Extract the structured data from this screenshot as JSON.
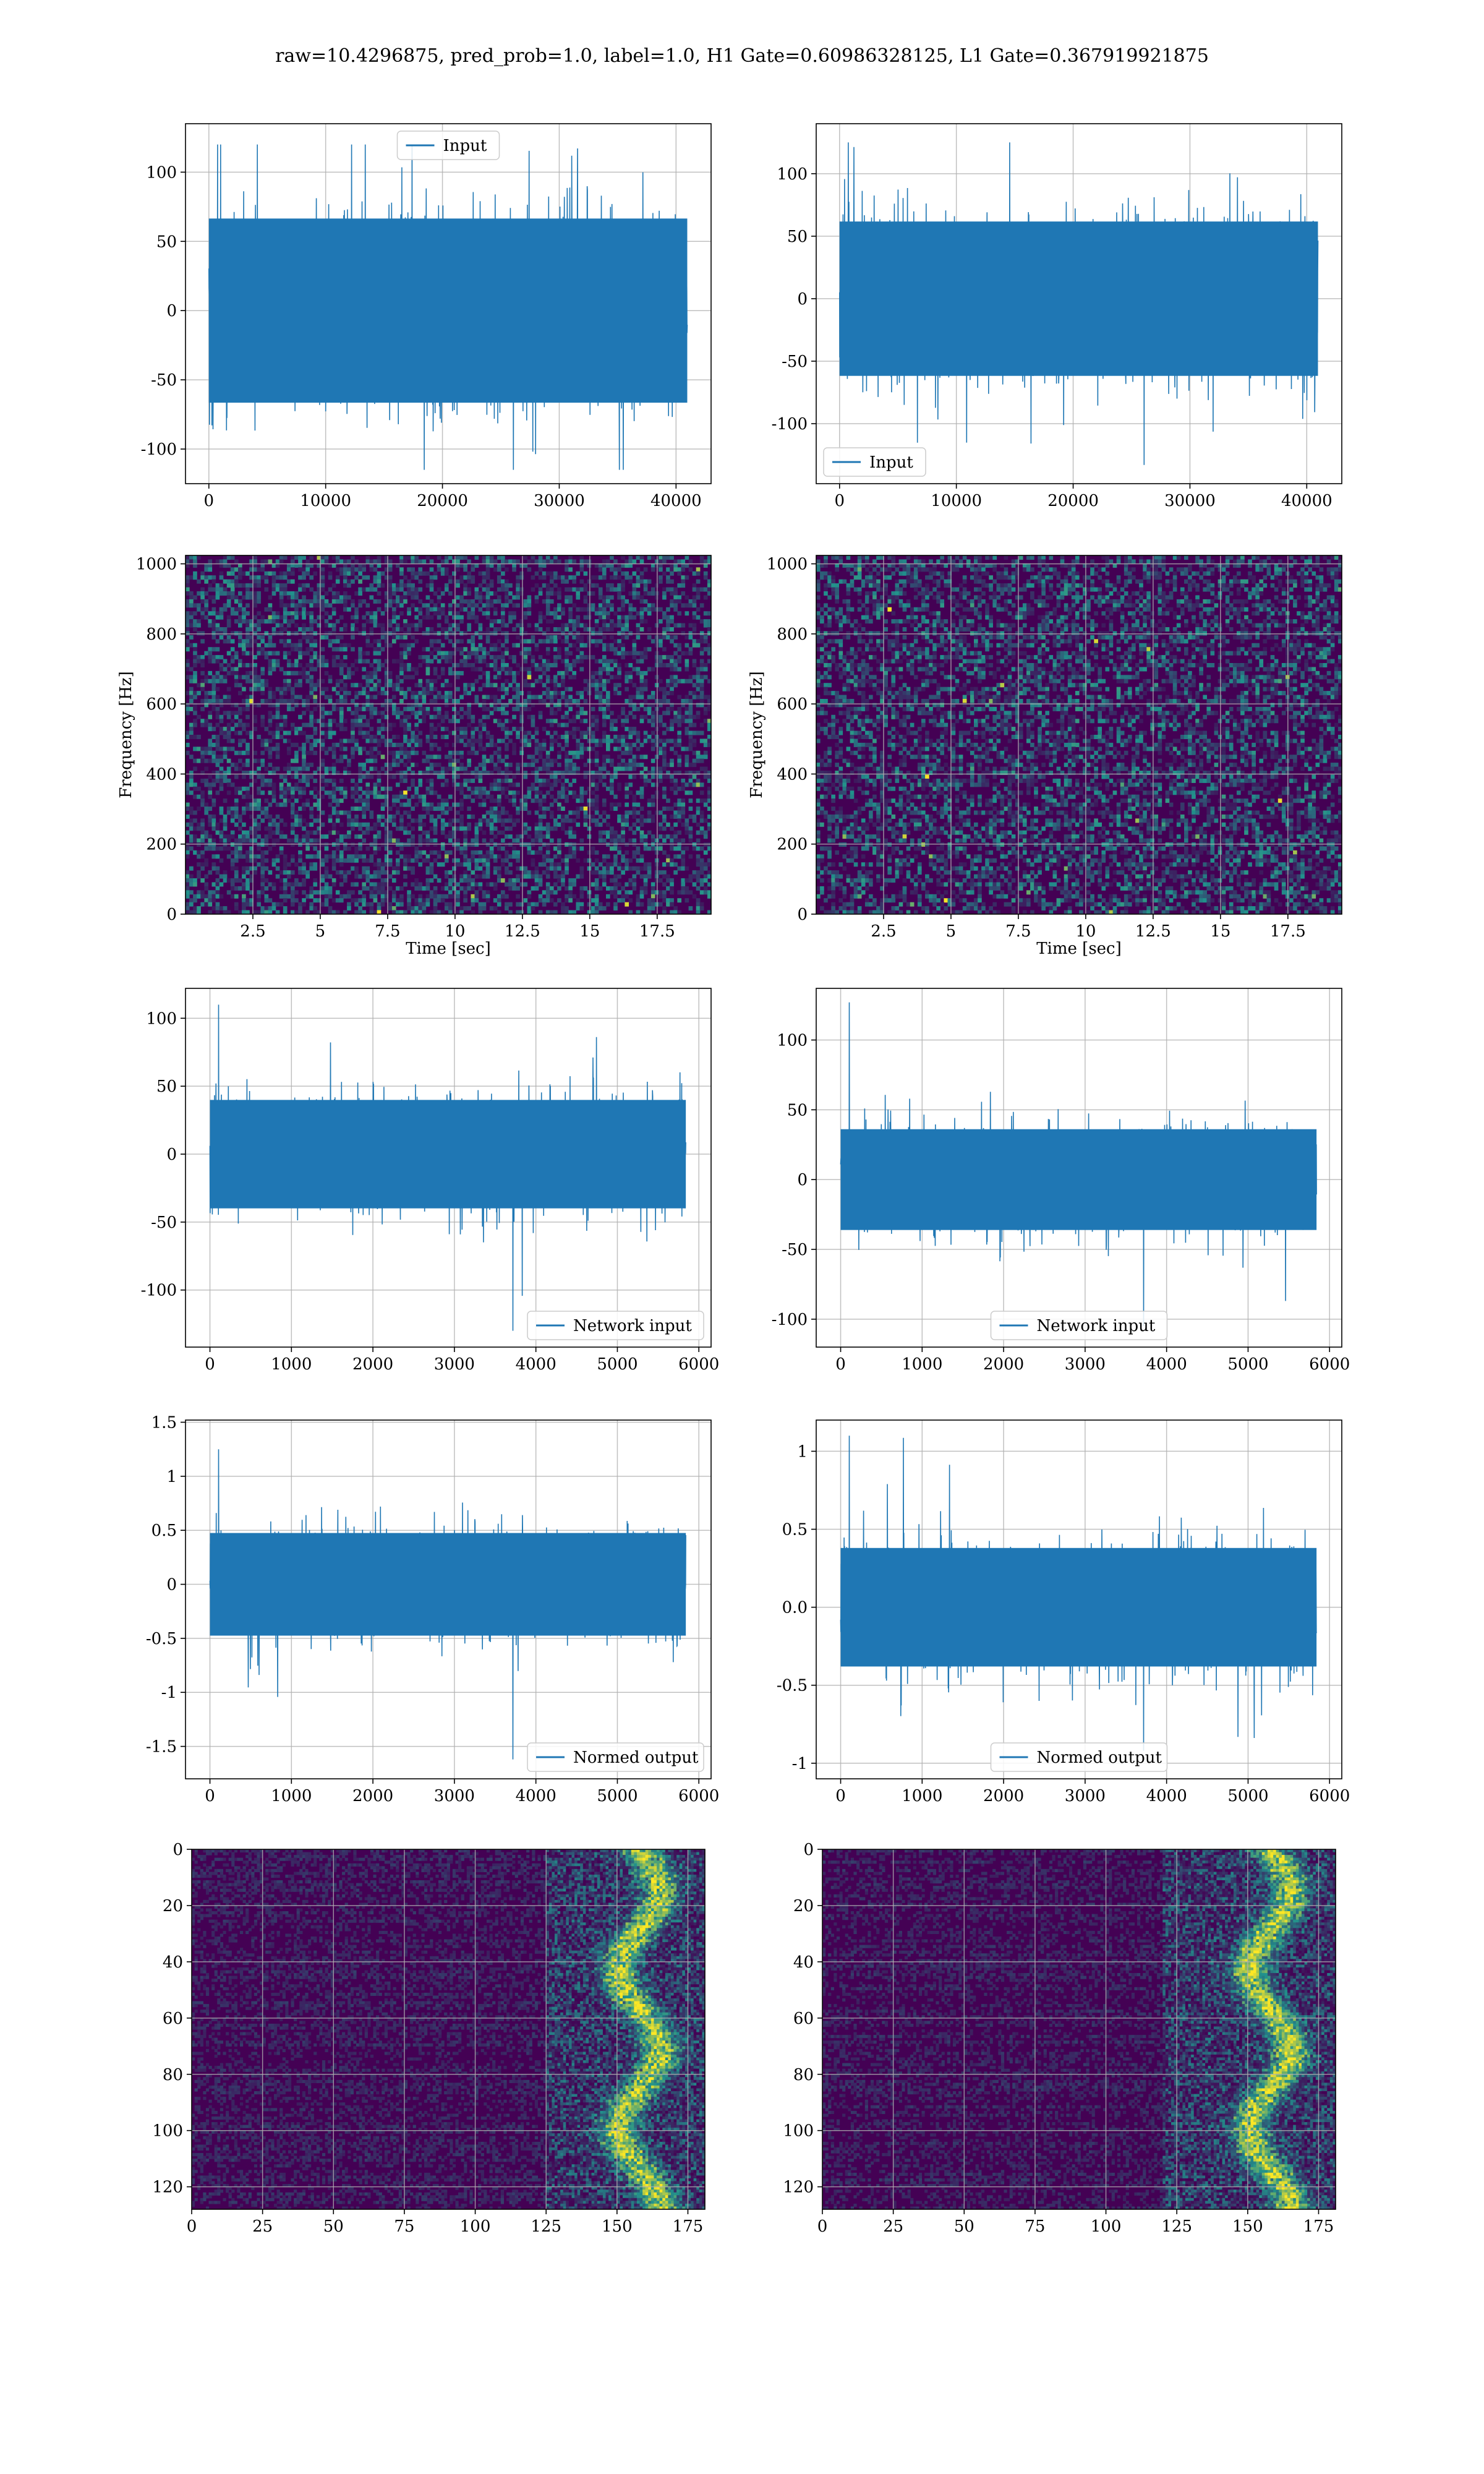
{
  "figure": {
    "title": "raw=10.4296875, pred_prob=1.0, label=1.0, H1 Gate=0.60986328125, L1 Gate=0.367919921875"
  },
  "colors": {
    "line": "#1f77b4",
    "grid": "#b0b0b0",
    "heat_low": "#440154",
    "heat_mid": "#21918c",
    "heat_high": "#fde725"
  },
  "chart_data": [
    {
      "type": "line",
      "panel": "row1-left",
      "legend": [
        "Input"
      ],
      "legend_loc": "upper center",
      "xlim": [
        -2000,
        43000
      ],
      "ylim": [
        -125,
        135
      ],
      "xticks": [
        0,
        10000,
        20000,
        30000,
        40000
      ],
      "yticks": [
        -100,
        -50,
        0,
        50,
        100
      ],
      "signal": {
        "n": 40960,
        "core": 70,
        "peak": 120,
        "trough": -115
      },
      "grid": true
    },
    {
      "type": "line",
      "panel": "row1-right",
      "legend": [
        "Input"
      ],
      "legend_loc": "lower left",
      "xlim": [
        -2000,
        43000
      ],
      "ylim": [
        -148,
        140
      ],
      "xticks": [
        0,
        10000,
        20000,
        30000,
        40000
      ],
      "yticks": [
        -100,
        -50,
        0,
        50,
        100
      ],
      "signal": {
        "n": 40960,
        "core": 65,
        "peak": 125,
        "trough": -133
      },
      "grid": true
    },
    {
      "type": "heatmap",
      "panel": "row2-left",
      "xlabel": "Time [sec]",
      "ylabel": "Frequency [Hz]",
      "xlim": [
        0,
        19.5
      ],
      "ylim": [
        0,
        1024
      ],
      "xticks": [
        2.5,
        5.0,
        7.5,
        10.0,
        12.5,
        15.0,
        17.5
      ],
      "yticks": [
        0,
        200,
        400,
        600,
        800,
        1000
      ],
      "grid": true
    },
    {
      "type": "heatmap",
      "panel": "row2-right",
      "xlabel": "Time [sec]",
      "ylabel": "Frequency [Hz]",
      "xlim": [
        0,
        19.5
      ],
      "ylim": [
        0,
        1024
      ],
      "xticks": [
        2.5,
        5.0,
        7.5,
        10.0,
        12.5,
        15.0,
        17.5
      ],
      "yticks": [
        0,
        200,
        400,
        600,
        800,
        1000
      ],
      "grid": true
    },
    {
      "type": "line",
      "panel": "row3-left",
      "legend": [
        "Network input"
      ],
      "legend_loc": "lower right",
      "xlim": [
        -300,
        6150
      ],
      "ylim": [
        -142,
        122
      ],
      "xticks": [
        0,
        1000,
        2000,
        3000,
        4000,
        5000,
        6000
      ],
      "yticks": [
        -100,
        -50,
        0,
        50,
        100
      ],
      "signal": {
        "n": 5840,
        "core": 42,
        "peak": 110,
        "trough": -130
      },
      "grid": true
    },
    {
      "type": "line",
      "panel": "row3-right",
      "legend": [
        "Network input"
      ],
      "legend_loc": "lower center",
      "xlim": [
        -300,
        6150
      ],
      "ylim": [
        -120,
        137
      ],
      "xticks": [
        0,
        1000,
        2000,
        3000,
        4000,
        5000,
        6000
      ],
      "yticks": [
        -100,
        -50,
        0,
        50,
        100
      ],
      "signal": {
        "n": 5840,
        "core": 38,
        "peak": 127,
        "trough": -105
      },
      "grid": true
    },
    {
      "type": "line",
      "panel": "row4-left",
      "legend": [
        "Normed output"
      ],
      "legend_loc": "lower right",
      "xlim": [
        -300,
        6150
      ],
      "ylim": [
        -1.8,
        1.52
      ],
      "xticks": [
        0,
        1000,
        2000,
        3000,
        4000,
        5000,
        6000
      ],
      "yticks": [
        -1.5,
        -1.0,
        -0.5,
        0.0,
        0.5,
        1.0,
        1.5
      ],
      "signal": {
        "n": 5840,
        "core": 0.5,
        "peak": 1.25,
        "trough": -1.62
      },
      "grid": true
    },
    {
      "type": "line",
      "panel": "row4-right",
      "legend": [
        "Normed output"
      ],
      "legend_loc": "lower center",
      "xlim": [
        -300,
        6150
      ],
      "ylim": [
        -1.1,
        1.2
      ],
      "xticks": [
        0,
        1000,
        2000,
        3000,
        4000,
        5000,
        6000
      ],
      "yticks": [
        -1.0,
        -0.5,
        0.0,
        0.5,
        1.0
      ],
      "signal": {
        "n": 5840,
        "core": 0.4,
        "peak": 1.1,
        "trough": -0.92
      },
      "grid": true
    },
    {
      "type": "heatmap",
      "panel": "row5-left",
      "xlim": [
        0,
        181
      ],
      "ylim": [
        128,
        0
      ],
      "xticks": [
        0,
        25,
        50,
        75,
        100,
        125,
        150,
        175
      ],
      "yticks": [
        0,
        20,
        40,
        60,
        80,
        100,
        120
      ],
      "active_from": 125,
      "grid": true
    },
    {
      "type": "heatmap",
      "panel": "row5-right",
      "xlim": [
        0,
        181
      ],
      "ylim": [
        128,
        0
      ],
      "xticks": [
        0,
        25,
        50,
        75,
        100,
        125,
        150,
        175
      ],
      "yticks": [
        0,
        20,
        40,
        60,
        80,
        100,
        120
      ],
      "active_from": 120,
      "grid": true
    }
  ]
}
